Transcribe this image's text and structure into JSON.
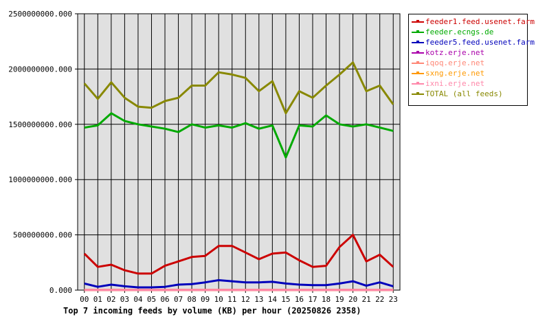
{
  "chart_data": {
    "type": "line",
    "title": "Top 7 incoming feeds by volume (KB) per hour (20250826 2358)",
    "xlabel": "",
    "ylabel": "",
    "categories": [
      "00",
      "01",
      "02",
      "03",
      "04",
      "05",
      "06",
      "07",
      "08",
      "09",
      "10",
      "11",
      "12",
      "13",
      "14",
      "15",
      "16",
      "17",
      "18",
      "19",
      "20",
      "21",
      "22",
      "23"
    ],
    "ylim": [
      0,
      2500000000
    ],
    "yticks": [
      "0.000",
      "500000000.000",
      "1000000000.000",
      "1500000000.000",
      "2000000000.000",
      "2500000000.000"
    ],
    "ytick_values": [
      0,
      500000000,
      1000000000,
      1500000000,
      2000000000,
      2500000000
    ],
    "grid": true,
    "legend_position": "right-top",
    "series": [
      {
        "name": "feeder1.feed.usenet.farm",
        "color": "#cc0000",
        "values": [
          330000000,
          210000000,
          230000000,
          180000000,
          150000000,
          150000000,
          220000000,
          260000000,
          300000000,
          310000000,
          400000000,
          400000000,
          340000000,
          280000000,
          330000000,
          340000000,
          270000000,
          210000000,
          220000000,
          390000000,
          500000000,
          260000000,
          320000000,
          210000000
        ]
      },
      {
        "name": "feeder.ecngs.de",
        "color": "#00aa00",
        "values": [
          1470000000,
          1490000000,
          1600000000,
          1530000000,
          1500000000,
          1480000000,
          1460000000,
          1430000000,
          1500000000,
          1470000000,
          1490000000,
          1470000000,
          1510000000,
          1460000000,
          1490000000,
          1200000000,
          1490000000,
          1480000000,
          1580000000,
          1500000000,
          1480000000,
          1500000000,
          1470000000,
          1440000000
        ]
      },
      {
        "name": "feeder5.feed.usenet.farm",
        "color": "#0000bb",
        "values": [
          60000000,
          30000000,
          50000000,
          35000000,
          25000000,
          25000000,
          30000000,
          50000000,
          55000000,
          70000000,
          90000000,
          80000000,
          70000000,
          70000000,
          75000000,
          60000000,
          50000000,
          45000000,
          45000000,
          60000000,
          80000000,
          40000000,
          70000000,
          35000000
        ]
      },
      {
        "name": "kotz.erje.net",
        "color": "#aa00aa",
        "values": [
          1000000,
          1000000,
          1000000,
          1000000,
          1000000,
          1000000,
          1000000,
          1000000,
          1000000,
          1000000,
          1000000,
          1000000,
          1000000,
          1000000,
          1000000,
          1000000,
          1000000,
          1000000,
          1000000,
          1000000,
          1000000,
          1000000,
          1000000,
          1000000
        ]
      },
      {
        "name": "iqoq.erje.net",
        "color": "#ff8877",
        "values": [
          1000000,
          1000000,
          1000000,
          1000000,
          1000000,
          1000000,
          1000000,
          1000000,
          1000000,
          1000000,
          1000000,
          1000000,
          1000000,
          1000000,
          1000000,
          1000000,
          1000000,
          1000000,
          1000000,
          1000000,
          1000000,
          1000000,
          1000000,
          1000000
        ]
      },
      {
        "name": "sxng.erje.net",
        "color": "#ff9900",
        "values": [
          1000000,
          1000000,
          1000000,
          1000000,
          1000000,
          1000000,
          1000000,
          1000000,
          1000000,
          1000000,
          1000000,
          1000000,
          1000000,
          1000000,
          1000000,
          1000000,
          1000000,
          1000000,
          1000000,
          1000000,
          1000000,
          1000000,
          1000000,
          1000000
        ]
      },
      {
        "name": "ixni.erje.net",
        "color": "#ff88aa",
        "values": [
          1000000,
          1000000,
          1000000,
          1000000,
          1000000,
          1000000,
          1000000,
          1000000,
          1000000,
          1000000,
          1000000,
          1000000,
          1000000,
          1000000,
          1000000,
          1000000,
          1000000,
          1000000,
          1000000,
          1000000,
          1000000,
          1000000,
          1000000,
          1000000
        ]
      },
      {
        "name": "TOTAL (all feeds)",
        "color": "#888800",
        "values": [
          1870000000,
          1730000000,
          1880000000,
          1740000000,
          1660000000,
          1650000000,
          1710000000,
          1740000000,
          1850000000,
          1850000000,
          1970000000,
          1950000000,
          1920000000,
          1800000000,
          1890000000,
          1600000000,
          1800000000,
          1740000000,
          1850000000,
          1950000000,
          2060000000,
          1800000000,
          1850000000,
          1680000000
        ]
      }
    ]
  }
}
